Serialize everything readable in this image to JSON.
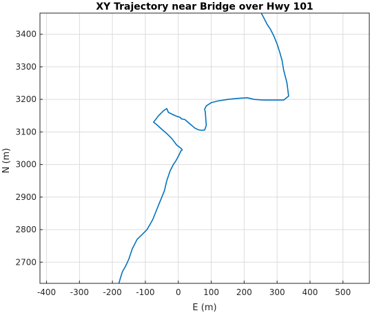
{
  "chart_data": {
    "type": "line",
    "title": "XY Trajectory near Bridge over Hwy 101",
    "xlabel": "E (m)",
    "ylabel": "N (m)",
    "xlim": [
      -420,
      580
    ],
    "ylim": [
      2635,
      3465
    ],
    "xticks": [
      -400,
      -300,
      -200,
      -100,
      0,
      100,
      200,
      300,
      400,
      500
    ],
    "yticks": [
      2700,
      2800,
      2900,
      3000,
      3100,
      3200,
      3300,
      3400
    ],
    "x_tick_labels": [
      "-400",
      "-300",
      "-200",
      "-100",
      "0",
      "100",
      "200",
      "300",
      "400",
      "500"
    ],
    "y_tick_labels": [
      "2700",
      "2800",
      "2900",
      "3000",
      "3100",
      "3200",
      "3300",
      "3400"
    ],
    "grid": true,
    "series": [
      {
        "color": "#0072BD",
        "x": [
          -180,
          -176,
          -170,
          -160,
          -150,
          -140,
          -125,
          -110,
          -95,
          -78,
          -70,
          -58,
          -50,
          -42,
          -35,
          -25,
          -15,
          -8,
          0,
          5,
          8,
          12,
          10,
          -5,
          -20,
          -35,
          -50,
          -65,
          -75,
          -60,
          -45,
          -35,
          -30,
          -20,
          -5,
          5,
          10,
          20,
          35,
          50,
          60,
          70,
          80,
          85,
          82,
          80,
          85,
          100,
          120,
          150,
          180,
          210,
          230,
          260,
          290,
          320,
          335,
          330,
          320,
          315,
          308,
          300,
          290,
          280,
          270,
          260,
          252
        ],
        "y": [
          2636,
          2650,
          2670,
          2688,
          2710,
          2740,
          2770,
          2785,
          2800,
          2830,
          2850,
          2880,
          2900,
          2920,
          2950,
          2980,
          3000,
          3010,
          3025,
          3035,
          3042,
          3045,
          3048,
          3060,
          3080,
          3095,
          3108,
          3122,
          3130,
          3150,
          3165,
          3172,
          3160,
          3155,
          3148,
          3145,
          3140,
          3138,
          3125,
          3112,
          3107,
          3105,
          3106,
          3120,
          3160,
          3170,
          3180,
          3190,
          3195,
          3200,
          3203,
          3205,
          3200,
          3198,
          3198,
          3198,
          3210,
          3250,
          3290,
          3320,
          3345,
          3370,
          3395,
          3415,
          3430,
          3450,
          3465
        ]
      }
    ]
  }
}
